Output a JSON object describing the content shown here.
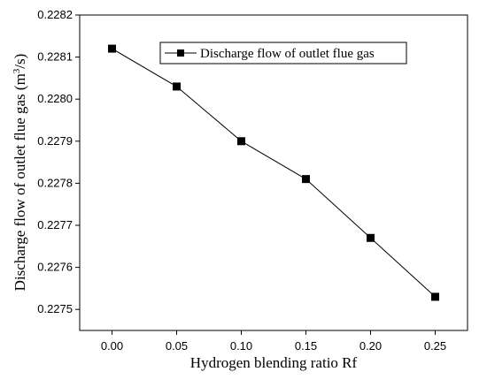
{
  "chart_data": {
    "type": "line",
    "x": [
      0.0,
      0.05,
      0.1,
      0.15,
      0.2,
      0.25
    ],
    "x_tick_labels": [
      "0.00",
      "0.05",
      "0.10",
      "0.15",
      "0.20",
      "0.25"
    ],
    "xlim": [
      -0.025,
      0.275
    ],
    "ylim": [
      0.22745,
      0.2282
    ],
    "y_ticks": [
      0.2275,
      0.2276,
      0.2277,
      0.2278,
      0.2279,
      0.228,
      0.2281,
      0.2282
    ],
    "y_tick_labels": [
      "0.2275",
      "0.2276",
      "0.2277",
      "0.2278",
      "0.2279",
      "0.2280",
      "0.2281",
      "0.2282"
    ],
    "xlabel": "Hydrogen blending ratio Rf",
    "ylabel": {
      "main": "Discharge flow of outlet flue gas  (m",
      "sup": "3",
      "end": "/s)"
    },
    "series": [
      {
        "name": "Discharge flow of outlet flue gas",
        "values": [
          0.22812,
          0.22803,
          0.2279,
          0.22781,
          0.22767,
          0.22753
        ],
        "marker": "square",
        "color": "#000000"
      }
    ],
    "legend": {
      "position": "top-right"
    },
    "grid": false
  }
}
